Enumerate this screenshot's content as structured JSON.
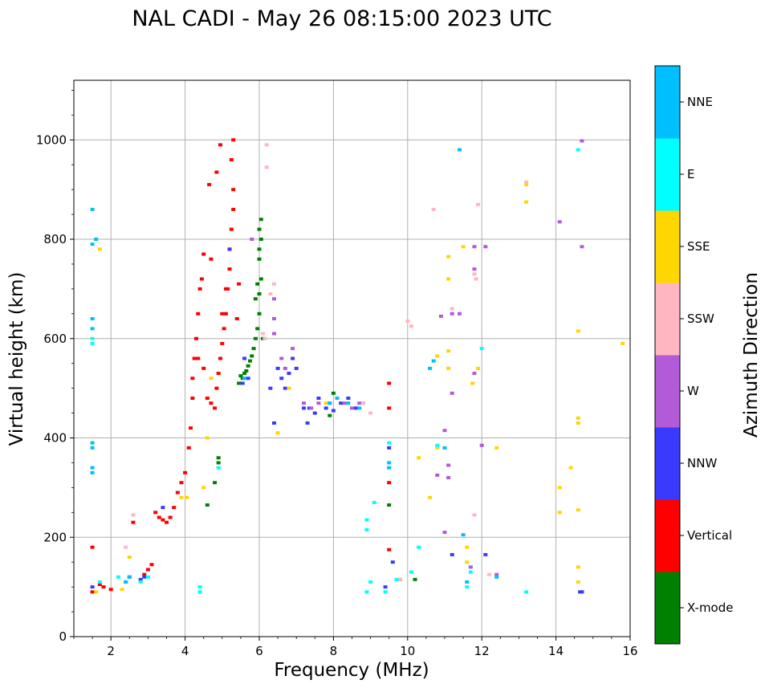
{
  "chart_data": {
    "type": "scatter",
    "title": "NAL CADI - May 26 08:15:00 2023 UTC",
    "xlabel": "Frequency (MHz)",
    "ylabel": "Virtual height (km)",
    "xlim": [
      1,
      16
    ],
    "ylim": [
      0,
      1120
    ],
    "xticks": [
      2,
      4,
      6,
      8,
      10,
      12,
      14,
      16
    ],
    "xtick_labels": [
      "2",
      "4",
      "6",
      "8",
      "10",
      "12",
      "14",
      "16"
    ],
    "yticks": [
      0,
      200,
      400,
      600,
      800,
      1000
    ],
    "ytick_labels": [
      "0",
      "200",
      "400",
      "600",
      "800",
      "1000"
    ],
    "grid": true,
    "colorbar": {
      "label": "Azimuth Direction",
      "categories": [
        "X-mode",
        "Vertical",
        "NNW",
        "W",
        "SSW",
        "SSE",
        "E",
        "NNE"
      ],
      "colors": [
        "#008000",
        "#ff0000",
        "#3a3aff",
        "#b35ad8",
        "#ffb6c1",
        "#ffd700",
        "#00ffff",
        "#00bfff"
      ]
    },
    "series": [
      {
        "name": "X-mode",
        "color": "#008000",
        "points": [
          [
            5.55,
            520
          ],
          [
            5.6,
            530
          ],
          [
            5.7,
            545
          ],
          [
            5.8,
            565
          ],
          [
            5.85,
            580
          ],
          [
            5.9,
            600
          ],
          [
            5.95,
            620
          ],
          [
            6.0,
            650
          ],
          [
            6.0,
            690
          ],
          [
            6.05,
            720
          ],
          [
            6.0,
            760
          ],
          [
            6.05,
            800
          ],
          [
            6.05,
            840
          ],
          [
            5.9,
            680
          ],
          [
            5.95,
            710
          ],
          [
            6.0,
            780
          ],
          [
            5.45,
            510
          ],
          [
            5.5,
            525
          ],
          [
            5.65,
            535
          ],
          [
            5.75,
            555
          ],
          [
            6.1,
            600
          ],
          [
            4.9,
            360
          ],
          [
            4.9,
            350
          ],
          [
            4.8,
            310
          ],
          [
            4.6,
            265
          ],
          [
            7.9,
            445
          ],
          [
            8.0,
            490
          ],
          [
            9.5,
            265
          ],
          [
            9.8,
            115
          ],
          [
            10.2,
            115
          ],
          [
            6.0,
            820
          ]
        ]
      },
      {
        "name": "Vertical",
        "color": "#ff0000",
        "points": [
          [
            1.5,
            180
          ],
          [
            1.5,
            90
          ],
          [
            1.7,
            105
          ],
          [
            1.8,
            100
          ],
          [
            2.0,
            95
          ],
          [
            2.6,
            230
          ],
          [
            2.9,
            125
          ],
          [
            3.0,
            135
          ],
          [
            3.1,
            145
          ],
          [
            3.2,
            250
          ],
          [
            3.3,
            240
          ],
          [
            3.4,
            235
          ],
          [
            3.5,
            230
          ],
          [
            3.6,
            240
          ],
          [
            3.7,
            260
          ],
          [
            3.8,
            290
          ],
          [
            3.9,
            310
          ],
          [
            4.0,
            330
          ],
          [
            4.1,
            380
          ],
          [
            4.15,
            420
          ],
          [
            4.2,
            480
          ],
          [
            4.2,
            520
          ],
          [
            4.25,
            560
          ],
          [
            4.3,
            600
          ],
          [
            4.35,
            650
          ],
          [
            4.4,
            700
          ],
          [
            4.45,
            720
          ],
          [
            4.35,
            560
          ],
          [
            4.5,
            540
          ],
          [
            4.6,
            480
          ],
          [
            4.7,
            470
          ],
          [
            4.8,
            460
          ],
          [
            4.85,
            500
          ],
          [
            4.9,
            530
          ],
          [
            4.95,
            560
          ],
          [
            5.0,
            590
          ],
          [
            5.05,
            620
          ],
          [
            5.1,
            650
          ],
          [
            5.15,
            700
          ],
          [
            5.2,
            740
          ],
          [
            5.2,
            780
          ],
          [
            5.25,
            820
          ],
          [
            5.3,
            860
          ],
          [
            5.3,
            900
          ],
          [
            5.25,
            960
          ],
          [
            5.3,
            1000
          ],
          [
            4.95,
            990
          ],
          [
            4.85,
            935
          ],
          [
            4.65,
            910
          ],
          [
            4.7,
            760
          ],
          [
            4.5,
            770
          ],
          [
            5.0,
            650
          ],
          [
            5.1,
            700
          ],
          [
            5.4,
            640
          ],
          [
            5.45,
            710
          ],
          [
            9.5,
            510
          ],
          [
            9.5,
            460
          ],
          [
            9.5,
            310
          ],
          [
            9.5,
            175
          ]
        ]
      },
      {
        "name": "NNW",
        "color": "#3a3aff",
        "points": [
          [
            1.5,
            100
          ],
          [
            2.5,
            120
          ],
          [
            2.8,
            115
          ],
          [
            2.9,
            120
          ],
          [
            3.4,
            260
          ],
          [
            5.2,
            780
          ],
          [
            5.6,
            560
          ],
          [
            5.7,
            520
          ],
          [
            5.55,
            510
          ],
          [
            6.3,
            500
          ],
          [
            6.5,
            540
          ],
          [
            6.6,
            520
          ],
          [
            6.7,
            500
          ],
          [
            6.8,
            530
          ],
          [
            6.9,
            560
          ],
          [
            7.0,
            540
          ],
          [
            7.2,
            460
          ],
          [
            7.35,
            460
          ],
          [
            7.5,
            450
          ],
          [
            7.6,
            480
          ],
          [
            7.8,
            460
          ],
          [
            8.0,
            455
          ],
          [
            8.2,
            470
          ],
          [
            8.4,
            480
          ],
          [
            8.6,
            460
          ],
          [
            8.8,
            470
          ],
          [
            9.5,
            380
          ],
          [
            9.6,
            150
          ],
          [
            9.4,
            100
          ],
          [
            11.2,
            165
          ],
          [
            12.1,
            165
          ],
          [
            14.7,
            90
          ],
          [
            14.65,
            90
          ],
          [
            6.4,
            430
          ],
          [
            7.3,
            430
          ]
        ]
      },
      {
        "name": "W",
        "color": "#b35ad8",
        "points": [
          [
            5.8,
            800
          ],
          [
            6.4,
            680
          ],
          [
            6.4,
            640
          ],
          [
            6.4,
            610
          ],
          [
            6.6,
            560
          ],
          [
            6.7,
            540
          ],
          [
            6.9,
            580
          ],
          [
            7.2,
            470
          ],
          [
            7.4,
            460
          ],
          [
            7.6,
            470
          ],
          [
            7.9,
            470
          ],
          [
            8.1,
            480
          ],
          [
            8.3,
            470
          ],
          [
            8.5,
            460
          ],
          [
            8.7,
            470
          ],
          [
            10.9,
            645
          ],
          [
            11.2,
            650
          ],
          [
            11.4,
            650
          ],
          [
            11.8,
            785
          ],
          [
            11.8,
            740
          ],
          [
            12.1,
            785
          ],
          [
            11.8,
            530
          ],
          [
            11.1,
            345
          ],
          [
            11.1,
            320
          ],
          [
            10.8,
            325
          ],
          [
            11.0,
            210
          ],
          [
            11.2,
            490
          ],
          [
            11.0,
            415
          ],
          [
            11.7,
            140
          ],
          [
            12.4,
            125
          ],
          [
            14.1,
            835
          ],
          [
            14.7,
            785
          ],
          [
            14.7,
            998
          ],
          [
            12.0,
            385
          ]
        ]
      },
      {
        "name": "SSW",
        "color": "#ffb6c1",
        "points": [
          [
            6.2,
            990
          ],
          [
            6.2,
            945
          ],
          [
            6.1,
            610
          ],
          [
            6.15,
            600
          ],
          [
            6.4,
            710
          ],
          [
            6.3,
            690
          ],
          [
            10.0,
            635
          ],
          [
            10.1,
            625
          ],
          [
            10.7,
            860
          ],
          [
            11.2,
            660
          ],
          [
            11.85,
            720
          ],
          [
            11.8,
            730
          ],
          [
            11.8,
            245
          ],
          [
            8.8,
            470
          ],
          [
            9.0,
            450
          ],
          [
            2.4,
            180
          ],
          [
            2.6,
            245
          ],
          [
            13.2,
            915
          ],
          [
            9.8,
            115
          ],
          [
            11.9,
            870
          ],
          [
            12.2,
            125
          ]
        ]
      },
      {
        "name": "SSE",
        "color": "#ffd700",
        "points": [
          [
            1.7,
            780
          ],
          [
            1.6,
            90
          ],
          [
            2.3,
            95
          ],
          [
            2.5,
            160
          ],
          [
            3.9,
            280
          ],
          [
            4.05,
            280
          ],
          [
            4.5,
            300
          ],
          [
            4.6,
            400
          ],
          [
            4.7,
            520
          ],
          [
            6.5,
            410
          ],
          [
            6.8,
            500
          ],
          [
            7.8,
            470
          ],
          [
            10.3,
            360
          ],
          [
            10.6,
            280
          ],
          [
            10.8,
            380
          ],
          [
            10.8,
            565
          ],
          [
            11.1,
            575
          ],
          [
            11.1,
            765
          ],
          [
            11.1,
            720
          ],
          [
            11.1,
            540
          ],
          [
            11.5,
            785
          ],
          [
            11.75,
            510
          ],
          [
            11.9,
            540
          ],
          [
            11.6,
            180
          ],
          [
            11.6,
            150
          ],
          [
            12.4,
            380
          ],
          [
            13.2,
            910
          ],
          [
            13.2,
            875
          ],
          [
            14.1,
            300
          ],
          [
            14.1,
            250
          ],
          [
            14.4,
            340
          ],
          [
            14.6,
            615
          ],
          [
            14.6,
            440
          ],
          [
            14.6,
            430
          ],
          [
            14.6,
            255
          ],
          [
            14.6,
            140
          ],
          [
            14.6,
            110
          ],
          [
            15.8,
            590
          ]
        ]
      },
      {
        "name": "E",
        "color": "#00ffff",
        "points": [
          [
            1.5,
            600
          ],
          [
            1.5,
            590
          ],
          [
            1.7,
            110
          ],
          [
            2.2,
            120
          ],
          [
            2.4,
            110
          ],
          [
            2.8,
            110
          ],
          [
            3.0,
            120
          ],
          [
            4.4,
            100
          ],
          [
            4.4,
            90
          ],
          [
            4.9,
            340
          ],
          [
            8.9,
            90
          ],
          [
            8.9,
            215
          ],
          [
            8.9,
            235
          ],
          [
            9.0,
            110
          ],
          [
            9.1,
            270
          ],
          [
            9.4,
            90
          ],
          [
            9.7,
            115
          ],
          [
            10.1,
            130
          ],
          [
            10.3,
            180
          ],
          [
            10.8,
            385
          ],
          [
            12.0,
            580
          ],
          [
            11.6,
            100
          ],
          [
            11.7,
            130
          ],
          [
            13.2,
            90
          ],
          [
            14.6,
            980
          ],
          [
            9.5,
            390
          ]
        ]
      },
      {
        "name": "NNE",
        "color": "#00bfff",
        "points": [
          [
            1.5,
            860
          ],
          [
            1.5,
            790
          ],
          [
            1.6,
            800
          ],
          [
            1.5,
            640
          ],
          [
            1.5,
            620
          ],
          [
            1.5,
            390
          ],
          [
            1.5,
            380
          ],
          [
            1.5,
            340
          ],
          [
            1.5,
            330
          ],
          [
            2.4,
            110
          ],
          [
            2.5,
            120
          ],
          [
            5.6,
            520
          ],
          [
            7.9,
            470
          ],
          [
            8.1,
            480
          ],
          [
            8.4,
            470
          ],
          [
            8.7,
            460
          ],
          [
            9.5,
            350
          ],
          [
            9.5,
            340
          ],
          [
            10.6,
            540
          ],
          [
            10.7,
            555
          ],
          [
            11.0,
            380
          ],
          [
            11.5,
            205
          ],
          [
            11.6,
            110
          ],
          [
            11.4,
            980
          ],
          [
            12.4,
            120
          ]
        ]
      }
    ]
  }
}
